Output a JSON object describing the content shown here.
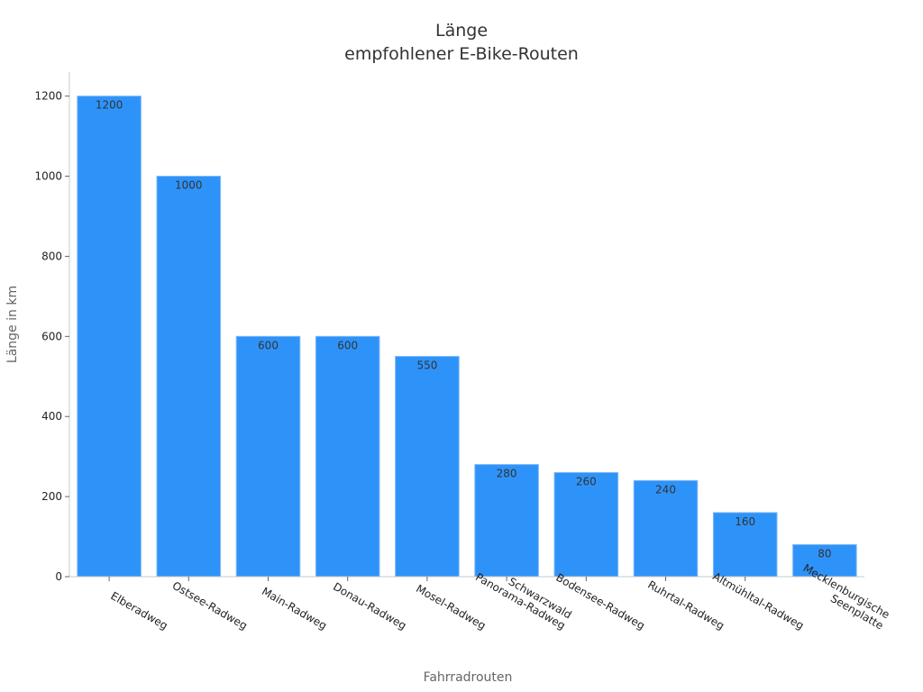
{
  "chart_data": {
    "type": "bar",
    "title_lines": [
      "Länge",
      "empfohlener E-Bike-Routen"
    ],
    "xlabel": "Fahrradrouten",
    "ylabel": "Länge in km",
    "categories": [
      [
        "Elberadweg"
      ],
      [
        "Ostsee-Radweg"
      ],
      [
        "Main-Radweg"
      ],
      [
        "Donau-Radweg"
      ],
      [
        "Mosel-Radweg"
      ],
      [
        "Schwarzwald",
        "Panorama-Radweg"
      ],
      [
        "Bodensee-Radweg"
      ],
      [
        "Ruhrtal-Radweg"
      ],
      [
        "Altmühltal-Radweg"
      ],
      [
        "Mecklenburgische",
        "Seenplatte"
      ]
    ],
    "values": [
      1200,
      1000,
      600,
      600,
      550,
      280,
      260,
      240,
      160,
      80
    ],
    "yticks": [
      0,
      200,
      400,
      600,
      800,
      1000,
      1200
    ],
    "ylim": [
      0,
      1260
    ],
    "grid": false,
    "bar_color": "#2E93F9",
    "bar_edge_color": "#7CB8F7",
    "axis_color": "#C8C8C8"
  }
}
